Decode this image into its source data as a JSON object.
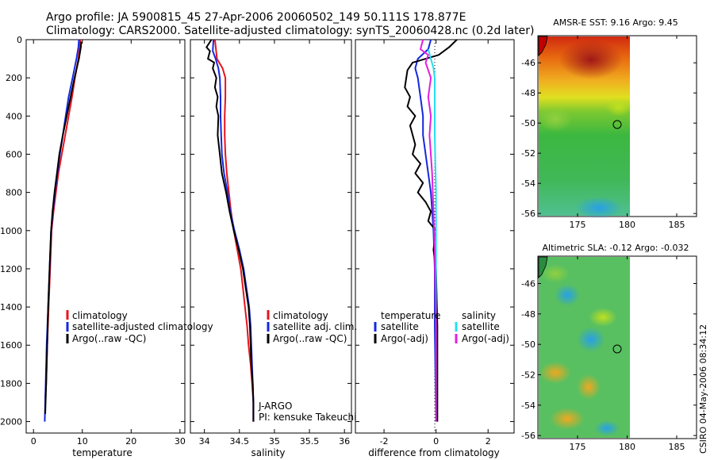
{
  "title": {
    "line1": "Argo profile: JA 5900815_45 27-Apr-2006 20060502_149 50.111S 178.877E",
    "line2": "Climatology: CARS2000. Satellite-adjusted climatology: synTS_20060428.nc (0.2d later)"
  },
  "colors": {
    "climatology": "#e8141c",
    "satellite": "#1428e0",
    "argo": "#000000",
    "satellite_salinity": "#22e0ee",
    "argo_salinity": "#e020e0"
  },
  "chart_data": [
    {
      "type": "line",
      "xlabel": "temperature",
      "ylabel": "",
      "xlim": [
        -1.5,
        31
      ],
      "ylim": [
        2060,
        0
      ],
      "xticks": [
        "0",
        "10",
        "20",
        "30"
      ],
      "yticks": [
        "0",
        "200",
        "400",
        "600",
        "800",
        "1000",
        "1200",
        "1400",
        "1600",
        "1800",
        "2000"
      ],
      "legend": [
        "climatology",
        "satellite-adjusted climatology",
        "Argo(..raw -QC)"
      ],
      "legend_position": "lower-right",
      "series": [
        {
          "name": "climatology",
          "color_key": "climatology",
          "points": [
            [
              9.6,
              0
            ],
            [
              9.5,
              40
            ],
            [
              9.2,
              100
            ],
            [
              8.5,
              200
            ],
            [
              7.9,
              300
            ],
            [
              7.2,
              400
            ],
            [
              6.5,
              500
            ],
            [
              5.8,
              600
            ],
            [
              5.1,
              700
            ],
            [
              4.6,
              800
            ],
            [
              4.1,
              900
            ],
            [
              3.7,
              1000
            ],
            [
              3.4,
              1200
            ],
            [
              3.1,
              1400
            ],
            [
              2.8,
              1600
            ],
            [
              2.6,
              1800
            ],
            [
              2.4,
              1880
            ]
          ]
        },
        {
          "name": "satellite-adjusted climatology",
          "color_key": "satellite",
          "points": [
            [
              9.3,
              0
            ],
            [
              9.2,
              40
            ],
            [
              8.8,
              100
            ],
            [
              8.0,
              200
            ],
            [
              7.2,
              300
            ],
            [
              6.6,
              400
            ],
            [
              6.0,
              500
            ],
            [
              5.4,
              600
            ],
            [
              4.9,
              700
            ],
            [
              4.4,
              800
            ],
            [
              4.0,
              900
            ],
            [
              3.6,
              1000
            ],
            [
              3.3,
              1200
            ],
            [
              3.0,
              1400
            ],
            [
              2.7,
              1600
            ],
            [
              2.5,
              1800
            ],
            [
              2.3,
              2000
            ]
          ]
        },
        {
          "name": "Argo(..raw -QC)",
          "color_key": "argo",
          "points": [
            [
              9.8,
              10
            ],
            [
              9.7,
              40
            ],
            [
              9.3,
              100
            ],
            [
              8.4,
              200
            ],
            [
              7.6,
              300
            ],
            [
              6.8,
              400
            ],
            [
              6.0,
              500
            ],
            [
              5.3,
              600
            ],
            [
              4.8,
              700
            ],
            [
              4.3,
              800
            ],
            [
              3.9,
              900
            ],
            [
              3.6,
              1000
            ],
            [
              3.3,
              1200
            ],
            [
              3.0,
              1400
            ],
            [
              2.8,
              1600
            ],
            [
              2.6,
              1800
            ],
            [
              2.4,
              1960
            ]
          ]
        }
      ]
    },
    {
      "type": "line",
      "xlabel": "salinity",
      "ylabel": "",
      "xlim": [
        33.8,
        36.1
      ],
      "ylim": [
        2060,
        0
      ],
      "xticks": [
        "34",
        "34.5",
        "35",
        "35.5",
        "36"
      ],
      "legend": [
        "climatology",
        "satellite adj. clim.",
        "Argo(..raw -QC)"
      ],
      "legend_position": "lower-right",
      "annotations": [
        "J-ARGO",
        "PI: kensuke Takeuchi"
      ],
      "series": [
        {
          "name": "climatology",
          "color_key": "climatology",
          "points": [
            [
              34.15,
              0
            ],
            [
              34.18,
              100
            ],
            [
              34.26,
              150
            ],
            [
              34.3,
              200
            ],
            [
              34.3,
              300
            ],
            [
              34.29,
              400
            ],
            [
              34.29,
              500
            ],
            [
              34.3,
              600
            ],
            [
              34.32,
              700
            ],
            [
              34.35,
              800
            ],
            [
              34.38,
              900
            ],
            [
              34.42,
              1000
            ],
            [
              34.47,
              1100
            ],
            [
              34.52,
              1200
            ],
            [
              34.55,
              1300
            ],
            [
              34.58,
              1400
            ],
            [
              34.61,
              1500
            ],
            [
              34.63,
              1600
            ],
            [
              34.66,
              1700
            ],
            [
              34.68,
              1800
            ],
            [
              34.7,
              1900
            ],
            [
              34.7,
              2000
            ]
          ]
        },
        {
          "name": "satellite adj. clim.",
          "color_key": "satellite",
          "points": [
            [
              34.13,
              0
            ],
            [
              34.12,
              60
            ],
            [
              34.16,
              100
            ],
            [
              34.2,
              150
            ],
            [
              34.22,
              200
            ],
            [
              34.23,
              300
            ],
            [
              34.23,
              400
            ],
            [
              34.24,
              500
            ],
            [
              34.25,
              600
            ],
            [
              34.28,
              700
            ],
            [
              34.33,
              800
            ],
            [
              34.37,
              900
            ],
            [
              34.43,
              1000
            ],
            [
              34.5,
              1100
            ],
            [
              34.56,
              1200
            ],
            [
              34.6,
              1300
            ],
            [
              34.64,
              1400
            ],
            [
              34.66,
              1500
            ],
            [
              34.67,
              1600
            ],
            [
              34.68,
              1700
            ],
            [
              34.69,
              1800
            ],
            [
              34.7,
              1900
            ],
            [
              34.7,
              2000
            ]
          ]
        },
        {
          "name": "Argo(..raw -QC)",
          "color_key": "argo",
          "points": [
            [
              34.1,
              0
            ],
            [
              34.03,
              40
            ],
            [
              34.08,
              60
            ],
            [
              34.05,
              100
            ],
            [
              34.14,
              120
            ],
            [
              34.12,
              150
            ],
            [
              34.17,
              200
            ],
            [
              34.15,
              250
            ],
            [
              34.19,
              300
            ],
            [
              34.17,
              350
            ],
            [
              34.2,
              400
            ],
            [
              34.19,
              500
            ],
            [
              34.22,
              600
            ],
            [
              34.25,
              700
            ],
            [
              34.31,
              800
            ],
            [
              34.36,
              900
            ],
            [
              34.42,
              1000
            ],
            [
              34.49,
              1100
            ],
            [
              34.55,
              1200
            ],
            [
              34.59,
              1300
            ],
            [
              34.63,
              1400
            ],
            [
              34.65,
              1500
            ],
            [
              34.66,
              1600
            ],
            [
              34.67,
              1700
            ],
            [
              34.69,
              1800
            ],
            [
              34.7,
              1900
            ],
            [
              34.7,
              2000
            ]
          ]
        }
      ]
    },
    {
      "type": "line",
      "xlabel": "difference from climatology",
      "ylabel": "",
      "xlim": [
        -3.1,
        3.0
      ],
      "ylim": [
        2060,
        0
      ],
      "xticks": [
        "-2",
        "0",
        "2"
      ],
      "legend": [
        {
          "heading": "temperature",
          "items": [
            "satellite",
            "Argo(-adj)"
          ]
        },
        {
          "heading": "salinity",
          "items": [
            "satellite",
            "Argo(-adj)"
          ]
        }
      ],
      "legend_position": "lower",
      "series": [
        {
          "name": "temperature satellite",
          "color_key": "satellite",
          "points": [
            [
              -0.2,
              0
            ],
            [
              -0.3,
              50
            ],
            [
              -0.7,
              100
            ],
            [
              -0.8,
              150
            ],
            [
              -0.7,
              200
            ],
            [
              -0.6,
              300
            ],
            [
              -0.5,
              400
            ],
            [
              -0.5,
              500
            ],
            [
              -0.4,
              600
            ],
            [
              -0.3,
              700
            ],
            [
              -0.2,
              800
            ],
            [
              -0.1,
              1000
            ],
            [
              -0.05,
              1200
            ],
            [
              -0.05,
              1500
            ],
            [
              0,
              2000
            ]
          ]
        },
        {
          "name": "temperature Argo(-adj)",
          "color_key": "argo",
          "points": [
            [
              0.8,
              0
            ],
            [
              0.5,
              40
            ],
            [
              0.1,
              80
            ],
            [
              -0.9,
              120
            ],
            [
              -1.1,
              160
            ],
            [
              -1.2,
              250
            ],
            [
              -1.0,
              300
            ],
            [
              -1.1,
              350
            ],
            [
              -0.8,
              400
            ],
            [
              -1.0,
              450
            ],
            [
              -0.8,
              550
            ],
            [
              -0.9,
              600
            ],
            [
              -0.6,
              650
            ],
            [
              -0.8,
              700
            ],
            [
              -0.5,
              750
            ],
            [
              -0.7,
              800
            ],
            [
              -0.4,
              850
            ],
            [
              -0.2,
              900
            ],
            [
              -0.3,
              950
            ],
            [
              0,
              1000
            ],
            [
              -0.1,
              1100
            ],
            [
              0,
              1200
            ],
            [
              0.05,
              1500
            ],
            [
              0.05,
              2000
            ]
          ]
        },
        {
          "name": "salinity satellite",
          "color_key": "satellite_salinity",
          "points": [
            [
              -0.3,
              50
            ],
            [
              -0.2,
              100
            ],
            [
              -0.1,
              150
            ],
            [
              -0.05,
              200
            ],
            [
              -0.05,
              300
            ],
            [
              -0.05,
              500
            ],
            [
              0,
              800
            ],
            [
              0,
              1200
            ],
            [
              0,
              2000
            ]
          ]
        },
        {
          "name": "salinity Argo(-adj)",
          "color_key": "argo_salinity",
          "points": [
            [
              -0.5,
              0
            ],
            [
              -0.6,
              50
            ],
            [
              -0.3,
              80
            ],
            [
              -0.4,
              120
            ],
            [
              -0.2,
              200
            ],
            [
              -0.3,
              300
            ],
            [
              -0.2,
              400
            ],
            [
              -0.25,
              500
            ],
            [
              -0.15,
              700
            ],
            [
              -0.1,
              900
            ],
            [
              -0.05,
              1100
            ],
            [
              0,
              1500
            ],
            [
              0,
              2000
            ]
          ]
        }
      ]
    },
    {
      "type": "heatmap",
      "title": "AMSR-E SST: 9.16 Argo: 9.45",
      "xticks": [
        "175",
        "180",
        "185"
      ],
      "yticks": [
        "-46",
        "-48",
        "-50",
        "-52",
        "-54",
        "-56"
      ],
      "xlim": [
        171,
        187
      ],
      "ylim": [
        -56.2,
        -44.2
      ],
      "marker": [
        178.877,
        -50.111
      ]
    },
    {
      "type": "heatmap",
      "title": "Altimetric SLA: -0.12 Argo: -0.032",
      "xticks": [
        "175",
        "180",
        "185"
      ],
      "yticks": [
        "-46",
        "-48",
        "-50",
        "-52",
        "-54",
        "-56"
      ],
      "xlim": [
        171,
        187
      ],
      "ylim": [
        -56.2,
        -44.2
      ],
      "marker": [
        178.877,
        -50.111
      ]
    }
  ],
  "footer": "CSIRO 04-May-2006 08:34:12"
}
